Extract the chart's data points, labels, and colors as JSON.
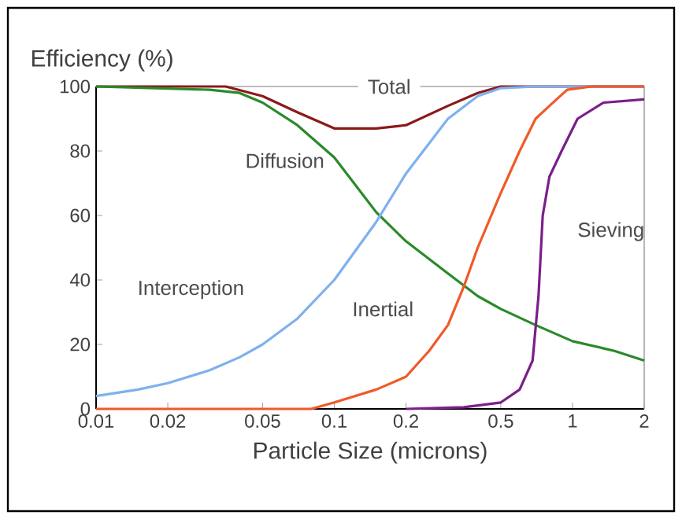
{
  "chart_data": {
    "type": "line",
    "xlabel": "Particle Size (microns)",
    "ylabel": "Efficiency (%)",
    "log": "x",
    "xlim": [
      0.01,
      2
    ],
    "ylim": [
      0,
      100
    ],
    "xticks": [
      0.01,
      0.02,
      0.05,
      0.1,
      0.2,
      0.5,
      1,
      2
    ],
    "yticks": [
      0,
      20,
      40,
      60,
      80,
      100
    ],
    "grid": false,
    "legend": false,
    "marker": "none",
    "line_style": "solid",
    "series": [
      {
        "name": "Total",
        "color": "#8b1a1a",
        "x": [
          0.01,
          0.035,
          0.05,
          0.07,
          0.1,
          0.15,
          0.2,
          0.3,
          0.4,
          0.5,
          1,
          2
        ],
        "values": [
          100,
          100,
          97,
          92,
          87,
          87,
          88,
          94,
          98,
          100,
          100,
          100
        ]
      },
      {
        "name": "Diffusion",
        "color": "#2a8a2a",
        "x": [
          0.01,
          0.03,
          0.04,
          0.05,
          0.07,
          0.1,
          0.15,
          0.2,
          0.3,
          0.4,
          0.5,
          0.7,
          1,
          1.5,
          2
        ],
        "values": [
          100,
          99,
          98,
          95,
          88,
          78,
          61,
          52,
          42,
          35,
          31,
          26,
          21,
          18,
          15
        ]
      },
      {
        "name": "Interception",
        "color": "#7fb0f0",
        "x": [
          0.01,
          0.015,
          0.02,
          0.03,
          0.04,
          0.05,
          0.07,
          0.1,
          0.15,
          0.2,
          0.3,
          0.4,
          0.5,
          0.7,
          2
        ],
        "values": [
          4,
          6,
          8,
          12,
          16,
          20,
          28,
          40,
          58,
          73,
          90,
          97,
          99.5,
          100,
          100
        ]
      },
      {
        "name": "Inertial",
        "color": "#f05a28",
        "x": [
          0.01,
          0.08,
          0.1,
          0.15,
          0.2,
          0.25,
          0.3,
          0.35,
          0.4,
          0.5,
          0.6,
          0.7,
          0.8,
          0.95,
          1.2,
          2
        ],
        "values": [
          0,
          0,
          2,
          6,
          10,
          18,
          26,
          38,
          50,
          67,
          80,
          90,
          94,
          99,
          100,
          100
        ]
      },
      {
        "name": "Sieving",
        "color": "#7a1f8a",
        "x": [
          0.2,
          0.35,
          0.5,
          0.6,
          0.68,
          0.72,
          0.75,
          0.8,
          0.9,
          1.05,
          1.35,
          2
        ],
        "values": [
          0,
          0.5,
          2,
          6,
          15,
          35,
          60,
          72,
          80,
          90,
          95,
          96
        ]
      }
    ]
  }
}
